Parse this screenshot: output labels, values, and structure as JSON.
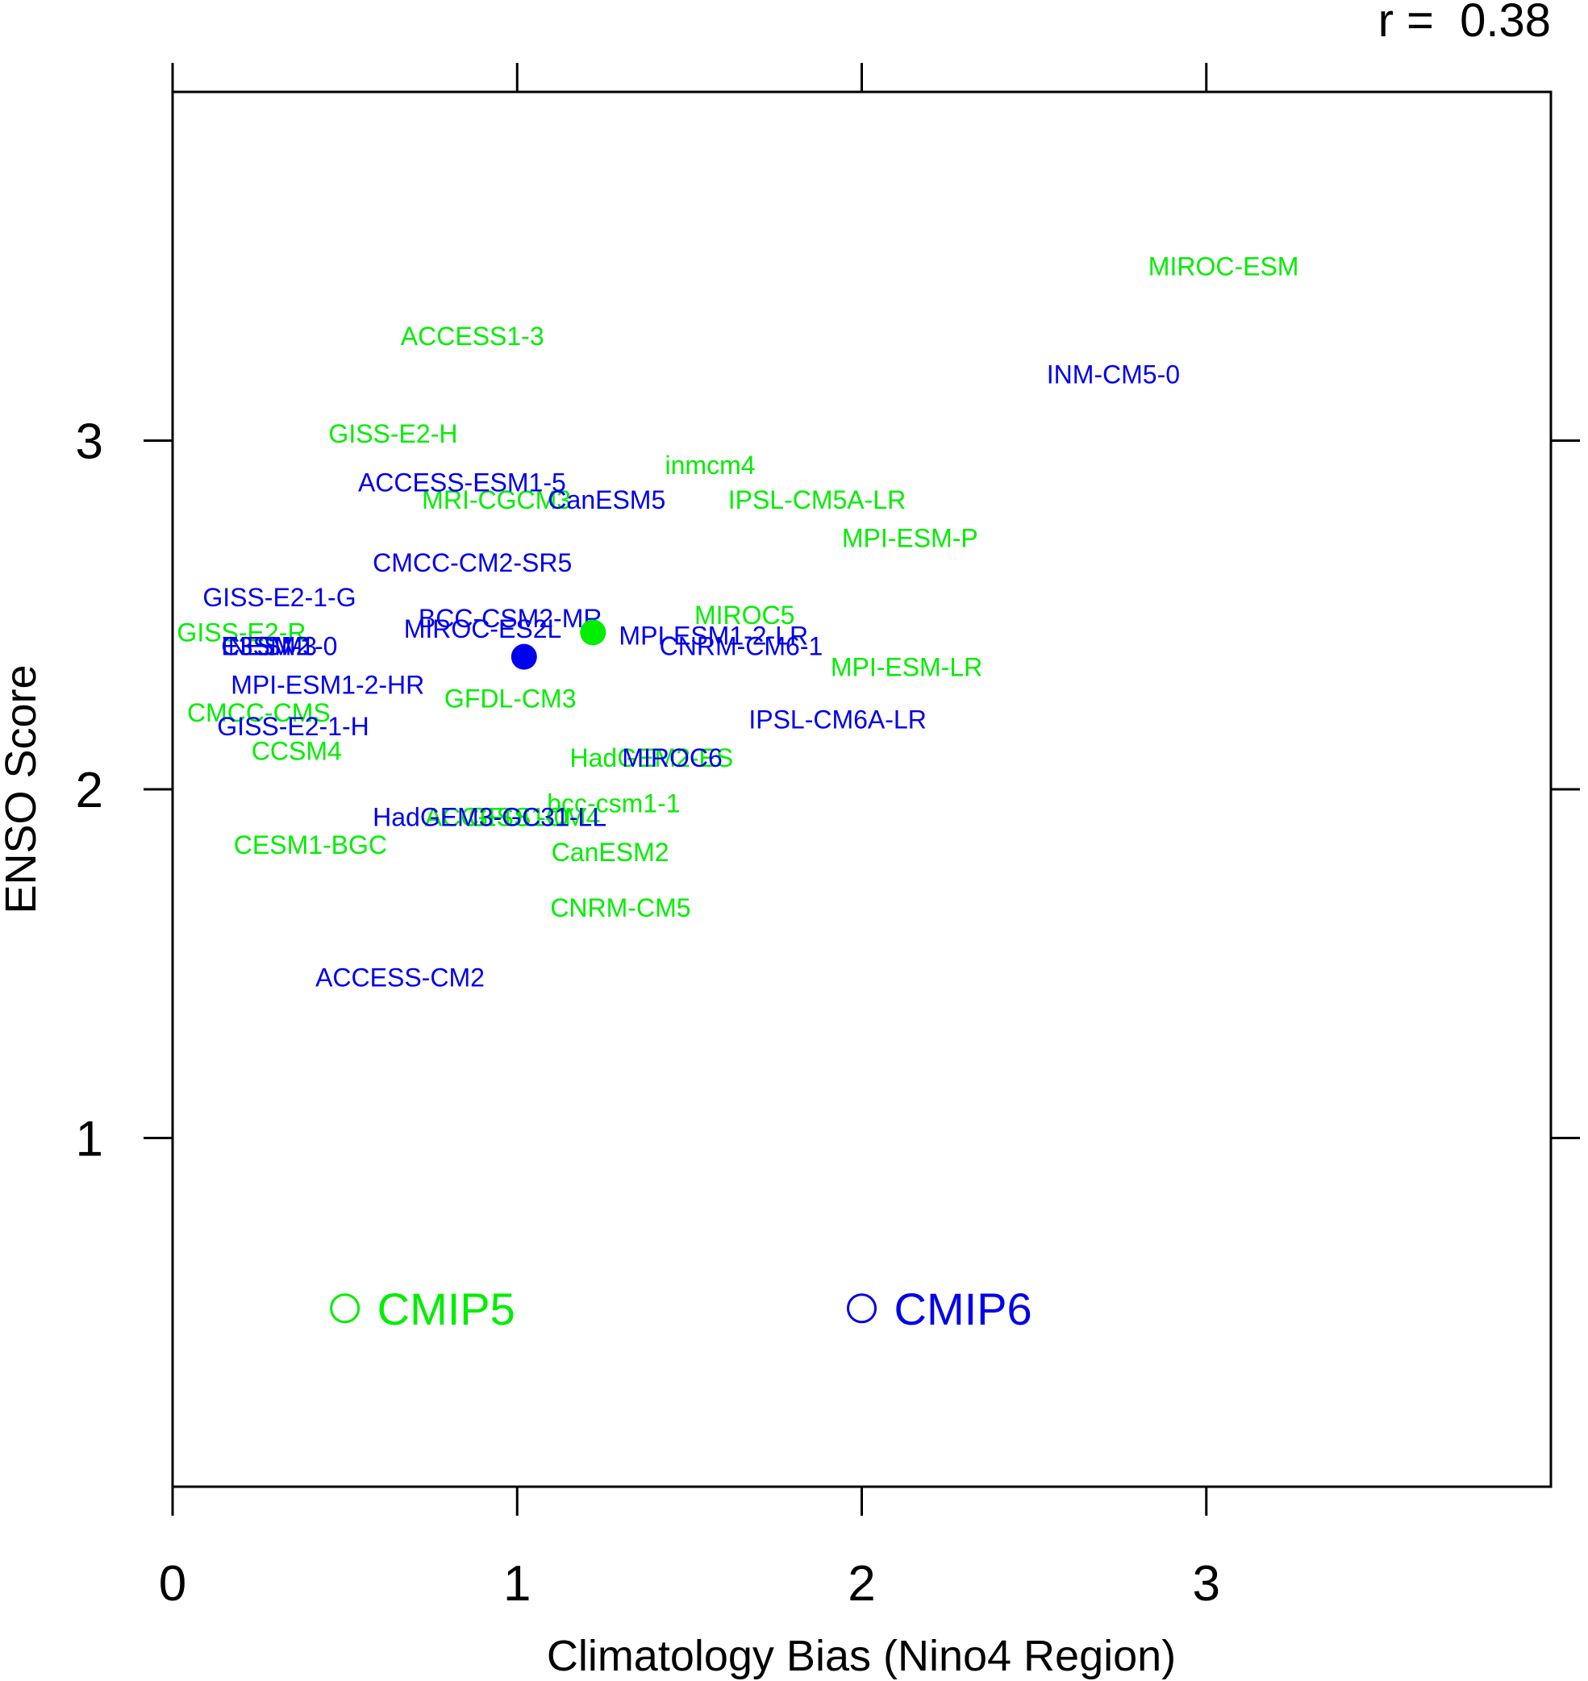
{
  "chart_data": {
    "type": "scatter",
    "title": "",
    "xlabel": "Climatology Bias (Nino4 Region)",
    "ylabel": "ENSO Score",
    "xlim": [
      0,
      4
    ],
    "ylim": [
      0,
      4
    ],
    "xticks": [
      0,
      1,
      2,
      3
    ],
    "yticks": [
      1,
      2,
      3
    ],
    "annotation": "r =  0.38",
    "grid": false,
    "colors": {
      "CMIP5": "#00ee00",
      "CMIP6": "#0000ee",
      "frame": "#000000"
    },
    "series": [
      {
        "name": "CMIP5",
        "mean": {
          "x": 1.22,
          "y": 2.45
        },
        "points": [
          {
            "label": "MIROC-ESM",
            "x": 3.05,
            "y": 3.5
          },
          {
            "label": "ACCESS1-3",
            "x": 0.87,
            "y": 3.3
          },
          {
            "label": "GISS-E2-H",
            "x": 0.64,
            "y": 3.02
          },
          {
            "label": "inmcm4",
            "x": 1.56,
            "y": 2.93
          },
          {
            "label": "MRI-CGCM3",
            "x": 0.94,
            "y": 2.83
          },
          {
            "label": "IPSL-CM5A-LR",
            "x": 1.87,
            "y": 2.83
          },
          {
            "label": "MPI-ESM-P",
            "x": 2.14,
            "y": 2.72
          },
          {
            "label": "MIROC5",
            "x": 1.66,
            "y": 2.5
          },
          {
            "label": "GISS-E2-R",
            "x": 0.2,
            "y": 2.45
          },
          {
            "label": "MPI-ESM-LR",
            "x": 2.13,
            "y": 2.35
          },
          {
            "label": "GFDL-CM3",
            "x": 0.98,
            "y": 2.26
          },
          {
            "label": "CMCC-CMS",
            "x": 0.25,
            "y": 2.22
          },
          {
            "label": "CCSM4",
            "x": 0.36,
            "y": 2.11
          },
          {
            "label": "HadGEM2-ES",
            "x": 1.39,
            "y": 2.09
          },
          {
            "label": "bcc-csm1-1",
            "x": 1.28,
            "y": 1.96
          },
          {
            "label": "ACCESS1-0",
            "x": 0.94,
            "y": 1.92
          },
          {
            "label": "GFDL-CM4",
            "x": 1.05,
            "y": 1.92
          },
          {
            "label": "CESM1-BGC",
            "x": 0.4,
            "y": 1.84
          },
          {
            "label": "CanESM2",
            "x": 1.27,
            "y": 1.82
          },
          {
            "label": "CNRM-CM5",
            "x": 1.3,
            "y": 1.66
          }
        ]
      },
      {
        "name": "CMIP6",
        "mean": {
          "x": 1.02,
          "y": 2.38
        },
        "points": [
          {
            "label": "INM-CM5-0",
            "x": 2.73,
            "y": 3.19
          },
          {
            "label": "ACCESS-ESM1-5",
            "x": 0.84,
            "y": 2.88
          },
          {
            "label": "CanESM5",
            "x": 1.26,
            "y": 2.83
          },
          {
            "label": "CMCC-CM2-SR5",
            "x": 0.87,
            "y": 2.65
          },
          {
            "label": "GISS-E2-1-G",
            "x": 0.31,
            "y": 2.55
          },
          {
            "label": "BCC-CSM2-MR",
            "x": 0.98,
            "y": 2.49
          },
          {
            "label": "MIROC-ES2L",
            "x": 0.9,
            "y": 2.46
          },
          {
            "label": "CESM2",
            "x": 0.27,
            "y": 2.41
          },
          {
            "label": "NESM3",
            "x": 0.29,
            "y": 2.41
          },
          {
            "label": "E3SM-1-0",
            "x": 0.31,
            "y": 2.41
          },
          {
            "label": "MPI-ESM1-2-LR",
            "x": 1.57,
            "y": 2.44
          },
          {
            "label": "CNRM-CM6-1",
            "x": 1.65,
            "y": 2.41
          },
          {
            "label": "MPI-ESM1-2-HR",
            "x": 0.45,
            "y": 2.3
          },
          {
            "label": "IPSL-CM6A-LR",
            "x": 1.93,
            "y": 2.2
          },
          {
            "label": "GISS-E2-1-H",
            "x": 0.35,
            "y": 2.18
          },
          {
            "label": "MIROC6",
            "x": 1.45,
            "y": 2.09
          },
          {
            "label": "HadGEM3-GC31-LL",
            "x": 0.92,
            "y": 1.92
          },
          {
            "label": "ACCESS-CM2",
            "x": 0.66,
            "y": 1.46
          }
        ]
      }
    ],
    "legend": {
      "placement": "bottom",
      "entries": [
        {
          "label": "CMIP5",
          "x": 0.5,
          "y": 0.5
        },
        {
          "label": "CMIP6",
          "x": 2.0,
          "y": 0.5
        }
      ]
    }
  }
}
